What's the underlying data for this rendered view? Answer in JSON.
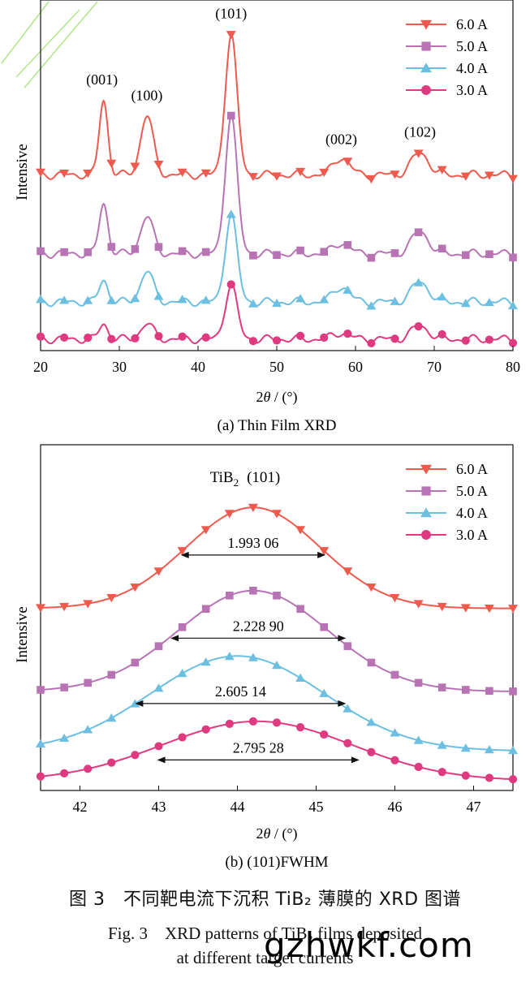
{
  "colors": {
    "s60": "#ef5a4e",
    "s50": "#b873b5",
    "s40": "#6cbfe0",
    "s30": "#df3a80",
    "axis": "#111111",
    "corner": "#9be36b"
  },
  "legend": [
    {
      "label": "6.0 A",
      "marker": "triangle-down",
      "key": "s60"
    },
    {
      "label": "5.0 A",
      "marker": "square",
      "key": "s50"
    },
    {
      "label": "4.0 A",
      "marker": "triangle-up",
      "key": "s40"
    },
    {
      "label": "3.0 A",
      "marker": "circle",
      "key": "s30"
    }
  ],
  "chart_data": [
    {
      "type": "line",
      "caption": "(a) Thin Film XRD",
      "xlabel_pre": "2",
      "xlabel_theta": "θ",
      "xlabel_post": " / (°)",
      "ylabel": "Intensive",
      "xlim": [
        20,
        80
      ],
      "xticks": [
        "20",
        "30",
        "40",
        "50",
        "60",
        "70",
        "80"
      ],
      "peaks": [
        {
          "pos": 28,
          "width": 0.55,
          "label": "(001)"
        },
        {
          "pos": 33.5,
          "width": 0.8,
          "label": "(100)"
        },
        {
          "pos": 44.2,
          "width": 0.75,
          "label": "(101)"
        },
        {
          "pos": 58.2,
          "width": 1.0,
          "label": "(002)"
        },
        {
          "pos": 68.2,
          "width": 1.1,
          "label": "(102)"
        }
      ],
      "series": [
        {
          "name": "6.0 A",
          "baseline": 0.78,
          "heights": [
            0.34,
            0.27,
            0.64,
            0.08,
            0.1
          ],
          "markers_x": [
            20,
            23,
            26,
            29,
            32,
            35,
            38,
            41,
            44.2,
            47,
            50,
            53,
            56,
            59,
            62,
            65,
            68,
            71,
            74,
            77,
            80
          ]
        },
        {
          "name": "5.0 A",
          "baseline": 0.42,
          "heights": [
            0.23,
            0.17,
            0.63,
            0.05,
            0.1
          ],
          "markers_x": [
            20,
            23,
            26,
            29,
            32,
            35,
            38,
            41,
            44.2,
            47,
            50,
            53,
            56,
            59,
            62,
            65,
            68,
            71,
            74,
            77,
            80
          ]
        },
        {
          "name": "4.0 A",
          "baseline": 0.2,
          "heights": [
            0.1,
            0.14,
            0.4,
            0.07,
            0.09
          ],
          "markers_x": [
            20,
            23,
            26,
            29,
            32,
            35,
            38,
            41,
            44.2,
            47,
            50,
            53,
            56,
            59,
            62,
            65,
            68,
            71,
            74,
            77,
            80
          ]
        },
        {
          "name": "3.0 A",
          "baseline": 0.03,
          "heights": [
            0.07,
            0.07,
            0.25,
            0.03,
            0.06
          ],
          "markers_x": [
            20,
            23,
            26,
            29,
            32,
            35,
            38,
            41,
            44.2,
            47,
            50,
            53,
            56,
            59,
            62,
            65,
            68,
            71,
            74,
            77,
            80
          ]
        }
      ],
      "ylim": [
        0,
        1.6
      ]
    },
    {
      "type": "line",
      "caption": "(b) (101)FWHM",
      "xlabel_pre": "2",
      "xlabel_theta": "θ",
      "xlabel_post": " / (°)",
      "ylabel": "Intensive",
      "xlim": [
        41.5,
        47.5
      ],
      "xticks": [
        "42",
        "43",
        "44",
        "45",
        "46",
        "47"
      ],
      "peak_title_main": "TiB",
      "peak_title_sub": "2",
      "peak_title_hkl": "(101)",
      "series": [
        {
          "name": "6.0 A",
          "baseline": 0.58,
          "height": 0.34,
          "center": 44.2,
          "sigma": 0.85,
          "fwhm": "1.993 06",
          "fwhm_range": [
            43.28,
            45.12
          ],
          "fwhm_level": 0.76,
          "markers_x": [
            41.5,
            41.8,
            42.1,
            42.4,
            42.7,
            43.0,
            43.3,
            43.6,
            43.9,
            44.2,
            44.5,
            44.8,
            45.1,
            45.4,
            45.7,
            46.0,
            46.3,
            46.6,
            46.9,
            47.2,
            47.5
          ]
        },
        {
          "name": "5.0 A",
          "baseline": 0.3,
          "height": 0.34,
          "center": 44.2,
          "sigma": 0.95,
          "fwhm": "2.228 90",
          "fwhm_range": [
            43.15,
            45.38
          ],
          "fwhm_level": 0.48,
          "markers_x": [
            41.5,
            41.8,
            42.1,
            42.4,
            42.7,
            43.0,
            43.3,
            43.6,
            43.9,
            44.2,
            44.5,
            44.8,
            45.1,
            45.4,
            45.7,
            46.0,
            46.3,
            46.6,
            46.9,
            47.2,
            47.5
          ]
        },
        {
          "name": "4.0 A",
          "baseline": 0.1,
          "height": 0.32,
          "center": 44.0,
          "sigma": 1.1,
          "fwhm": "2.605 14",
          "fwhm_range": [
            42.7,
            45.38
          ],
          "fwhm_level": 0.26,
          "markers_x": [
            41.5,
            41.8,
            42.1,
            42.4,
            42.7,
            43.0,
            43.3,
            43.6,
            43.9,
            44.2,
            44.5,
            44.8,
            45.1,
            45.4,
            45.7,
            46.0,
            46.3,
            46.6,
            46.9,
            47.2,
            47.5
          ]
        },
        {
          "name": "3.0 A",
          "baseline": 0.0,
          "height": 0.2,
          "center": 44.25,
          "sigma": 1.2,
          "fwhm": "2.795 28",
          "fwhm_range": [
            42.98,
            45.55
          ],
          "fwhm_level": 0.07,
          "markers_x": [
            41.5,
            41.8,
            42.1,
            42.4,
            42.7,
            43.0,
            43.3,
            43.6,
            43.9,
            44.2,
            44.5,
            44.8,
            45.1,
            45.4,
            45.7,
            46.0,
            46.3,
            46.6,
            46.9,
            47.2,
            47.5
          ]
        }
      ],
      "ylim": [
        0,
        1.0
      ]
    }
  ],
  "caption_cn": "图 3　不同靶电流下沉积 TiB₂ 薄膜的 XRD 图谱",
  "caption_en_line1": "Fig. 3　XRD patterns of TiB₂ films deposited",
  "caption_en_line2": "at different target currents",
  "watermark": "gzhwkf.com"
}
